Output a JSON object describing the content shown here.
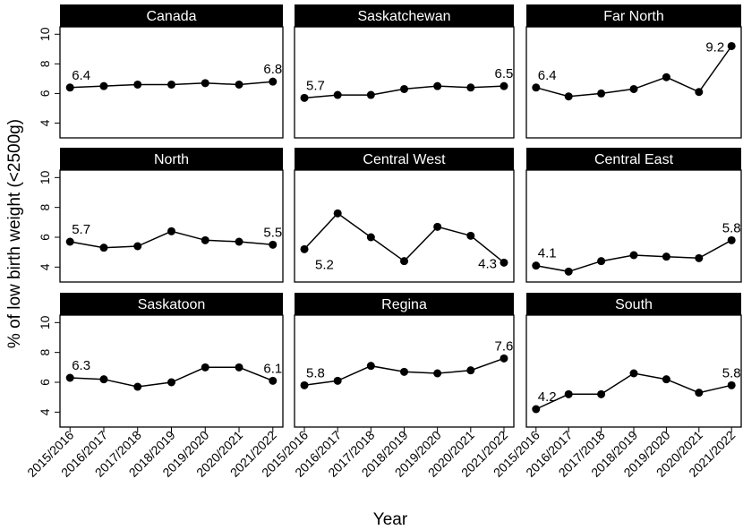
{
  "chart_data": {
    "type": "line",
    "xlabel": "Year",
    "ylabel": "% of low birth weight (<2500g)",
    "ylim": [
      3,
      10.5
    ],
    "y_ticks": [
      "4",
      "6",
      "8",
      "10"
    ],
    "categories": [
      "2015/2016",
      "2016/2017",
      "2017/2018",
      "2018/2019",
      "2019/2020",
      "2020/2021",
      "2021/2022"
    ],
    "grid": false,
    "panels": [
      {
        "name": "Canada",
        "values": [
          6.4,
          6.5,
          6.6,
          6.6,
          6.7,
          6.6,
          6.8
        ],
        "labels": [
          {
            "index": 0,
            "text": "6.4",
            "pos": "above"
          },
          {
            "index": 6,
            "text": "6.8",
            "pos": "above"
          }
        ]
      },
      {
        "name": "Saskatchewan",
        "values": [
          5.7,
          5.9,
          5.9,
          6.3,
          6.5,
          6.4,
          6.5
        ],
        "labels": [
          {
            "index": 0,
            "text": "5.7",
            "pos": "above"
          },
          {
            "index": 6,
            "text": "6.5",
            "pos": "above"
          }
        ]
      },
      {
        "name": "Far North",
        "values": [
          6.4,
          5.8,
          6.0,
          6.3,
          7.1,
          6.1,
          9.2
        ],
        "labels": [
          {
            "index": 0,
            "text": "6.4",
            "pos": "above"
          },
          {
            "index": 6,
            "text": "9.2",
            "pos": "left"
          }
        ]
      },
      {
        "name": "North",
        "values": [
          5.7,
          5.3,
          5.4,
          6.4,
          5.8,
          5.7,
          5.5
        ],
        "labels": [
          {
            "index": 0,
            "text": "5.7",
            "pos": "above"
          },
          {
            "index": 6,
            "text": "5.5",
            "pos": "above"
          }
        ]
      },
      {
        "name": "Central West",
        "values": [
          5.2,
          7.6,
          6.0,
          4.4,
          6.7,
          6.1,
          4.3
        ],
        "labels": [
          {
            "index": 0,
            "text": "5.2",
            "pos": "below"
          },
          {
            "index": 6,
            "text": "4.3",
            "pos": "left"
          }
        ]
      },
      {
        "name": "Central East",
        "values": [
          4.1,
          3.7,
          4.4,
          4.8,
          4.7,
          4.6,
          5.8
        ],
        "labels": [
          {
            "index": 0,
            "text": "4.1",
            "pos": "above"
          },
          {
            "index": 6,
            "text": "5.8",
            "pos": "above"
          }
        ]
      },
      {
        "name": "Saskatoon",
        "values": [
          6.3,
          6.2,
          5.7,
          6.0,
          7.0,
          7.0,
          6.1
        ],
        "labels": [
          {
            "index": 0,
            "text": "6.3",
            "pos": "above"
          },
          {
            "index": 6,
            "text": "6.1",
            "pos": "above"
          }
        ]
      },
      {
        "name": "Regina",
        "values": [
          5.8,
          6.1,
          7.1,
          6.7,
          6.6,
          6.8,
          7.6
        ],
        "labels": [
          {
            "index": 0,
            "text": "5.8",
            "pos": "above"
          },
          {
            "index": 6,
            "text": "7.6",
            "pos": "above"
          }
        ]
      },
      {
        "name": "South",
        "values": [
          4.2,
          5.2,
          5.2,
          6.6,
          6.2,
          5.3,
          5.8
        ],
        "labels": [
          {
            "index": 0,
            "text": "4.2",
            "pos": "above"
          },
          {
            "index": 6,
            "text": "5.8",
            "pos": "above"
          }
        ]
      }
    ]
  }
}
